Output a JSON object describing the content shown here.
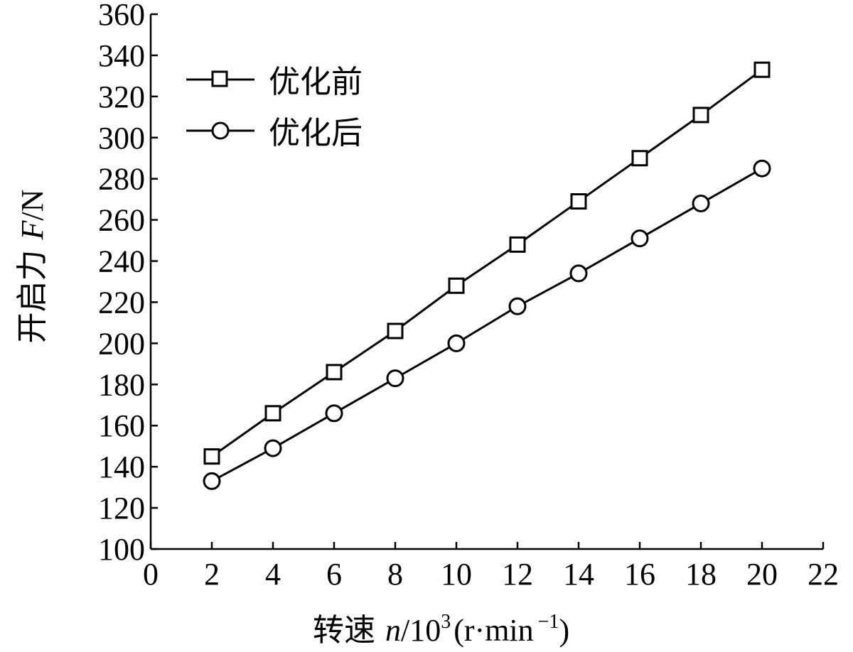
{
  "chart_data": {
    "type": "line",
    "xlabel": {
      "prefix": "转速",
      "var": "n",
      "slash": "/",
      "base": "10",
      "exp": "3",
      "unit_open": "(r·min",
      "unit_exp": "−1",
      "unit_close": ")"
    },
    "ylabel": {
      "prefix": "开启力",
      "var": "F",
      "unit": "/N"
    },
    "xlim": [
      0,
      22
    ],
    "ylim": [
      100,
      360
    ],
    "xticks": [
      0,
      2,
      4,
      6,
      8,
      10,
      12,
      14,
      16,
      18,
      20,
      22
    ],
    "yticks": [
      100,
      120,
      140,
      160,
      180,
      200,
      220,
      240,
      260,
      280,
      300,
      320,
      340,
      360
    ],
    "grid": false,
    "legend_position": "top-left",
    "x": [
      2,
      4,
      6,
      8,
      10,
      12,
      14,
      16,
      18,
      20
    ],
    "series": [
      {
        "name": "优化前",
        "marker": "square",
        "values": [
          145,
          166,
          186,
          206,
          228,
          248,
          269,
          290,
          311,
          333
        ]
      },
      {
        "name": "优化后",
        "marker": "circle",
        "values": [
          133,
          149,
          166,
          183,
          200,
          218,
          234,
          251,
          268,
          285
        ]
      }
    ]
  }
}
